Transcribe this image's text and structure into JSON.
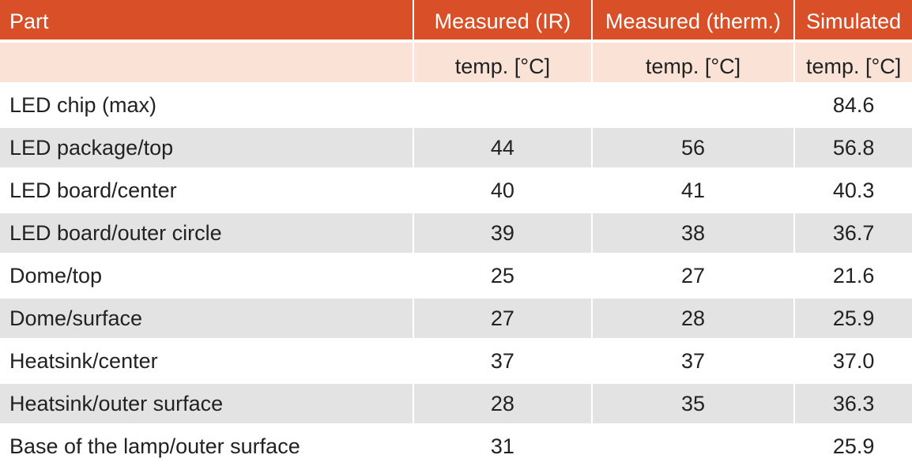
{
  "table": {
    "headers": [
      "Part",
      "Measured (IR)",
      "Measured (therm.)",
      "Simulated"
    ],
    "subheaders": [
      "",
      "temp. [°C]",
      "temp. [°C]",
      "temp. [°C]"
    ],
    "rows": [
      [
        "LED chip (max)",
        "",
        "",
        "84.6"
      ],
      [
        "LED package/top",
        "44",
        "56",
        "56.8"
      ],
      [
        "LED board/center",
        "40",
        "41",
        "40.3"
      ],
      [
        "LED board/outer circle",
        "39",
        "38",
        "36.7"
      ],
      [
        "Dome/top",
        "25",
        "27",
        "21.6"
      ],
      [
        "Dome/surface",
        "27",
        "28",
        "25.9"
      ],
      [
        "Heatsink/center",
        "37",
        "37",
        "37.0"
      ],
      [
        "Heatsink/outer surface",
        "28",
        "35",
        "36.3"
      ],
      [
        "Base of the lamp/outer surface",
        "31",
        "",
        "25.9"
      ]
    ]
  },
  "colors": {
    "header_bg": "#d94f27",
    "subheader_bg": "#fae3d6",
    "stripe_bg": "#e3e3e3"
  }
}
